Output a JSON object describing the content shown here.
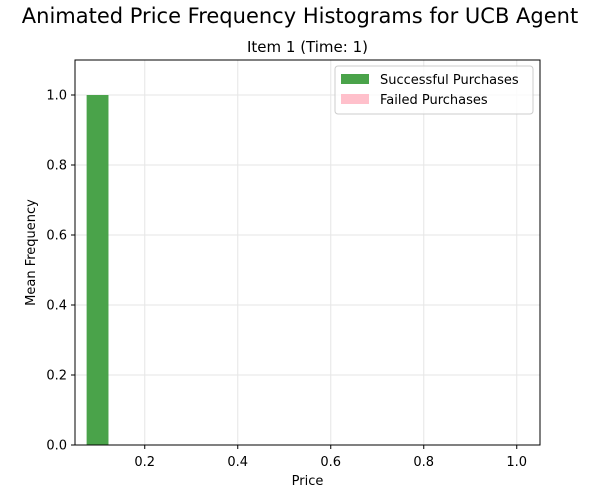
{
  "suptitle": "Animated Price Frequency Histograms for UCB Agent",
  "chart_data": {
    "type": "bar",
    "title": "Item 1 (Time: 1)",
    "xlabel": "Price",
    "ylabel": "Mean Frequency",
    "xlim": [
      0.05,
      1.05
    ],
    "ylim": [
      0.0,
      1.1
    ],
    "xticks": [
      "0.2",
      "0.4",
      "0.6",
      "0.8",
      "1.0"
    ],
    "yticks": [
      "0.0",
      "0.2",
      "0.4",
      "0.6",
      "0.8",
      "1.0"
    ],
    "grid": true,
    "legend_position": "top-right",
    "series": [
      {
        "name": "Successful Purchases",
        "color": "#4aa34a",
        "bins": [
          {
            "x_start": 0.075,
            "x_end": 0.122,
            "value": 1.0
          }
        ]
      },
      {
        "name": "Failed Purchases",
        "color": "#ffc0cb",
        "bins": []
      }
    ]
  }
}
